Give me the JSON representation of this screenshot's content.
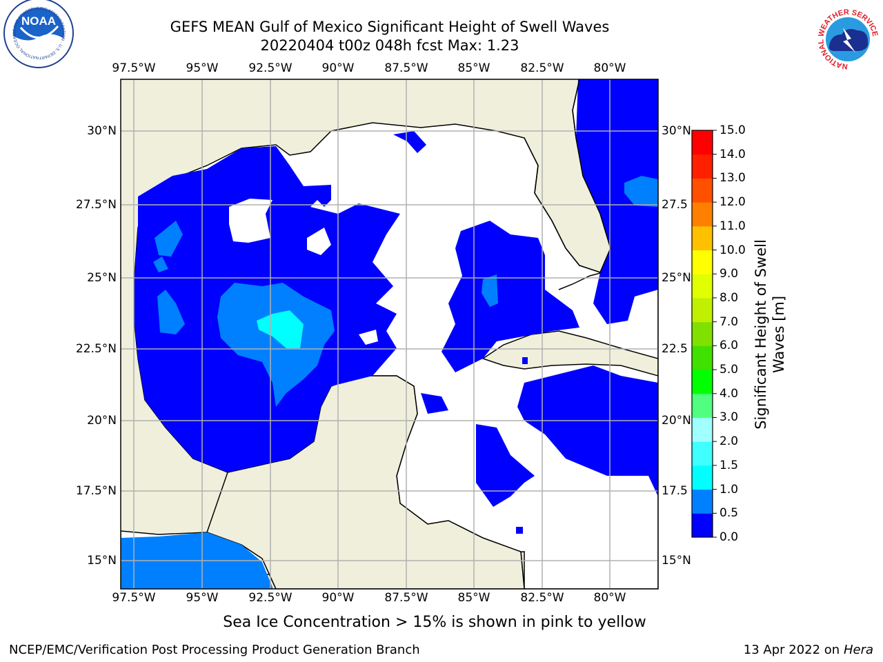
{
  "header": {
    "title_line1": "GEFS MEAN Gulf of Mexico Significant Height of Swell Waves",
    "title_line2": "20220404 t00z 048h fcst   Max: 1.23"
  },
  "logos": {
    "left": {
      "name": "noaa-logo",
      "text": "NOAA",
      "ring_text": "NATIONAL OCEANIC AND ATMOSPHERIC ADMINISTRATION · U.S. DEPARTMENT OF COMMERCE"
    },
    "right": {
      "name": "nws-logo",
      "ring_text": "NATIONAL WEATHER SERVICE"
    }
  },
  "map": {
    "lon_ticks": [
      "97.5°W",
      "95°W",
      "92.5°W",
      "90°W",
      "87.5°W",
      "85°W",
      "82.5°W",
      "80°W"
    ],
    "lat_ticks_left": [
      "30°N",
      "27.5°N",
      "25°N",
      "22.5°N",
      "20°N",
      "17.5°N",
      "15°N"
    ],
    "lat_ticks_right": [
      "30°N",
      "27.5",
      "25°N",
      "22.5",
      "20°N",
      "17.5",
      "15°N"
    ],
    "colors": {
      "land": "#efefdc",
      "ocean_low": "#0000ff",
      "ocean_mid": "#0080ff",
      "ocean_high": "#00ffff"
    }
  },
  "colorbar": {
    "label_line1": "Significant Height of Swell",
    "label_line2": "Waves [m]",
    "ticks": [
      "0.0",
      "0.5",
      "1.0",
      "1.5",
      "2.0",
      "3.0",
      "4.0",
      "5.0",
      "6.0",
      "7.0",
      "8.0",
      "9.0",
      "10.0",
      "11.0",
      "12.0",
      "13.0",
      "14.0",
      "15.0"
    ],
    "colors": [
      "#0000ff",
      "#0080ff",
      "#00ffff",
      "#40ffff",
      "#a0ffff",
      "#50ff80",
      "#00ff00",
      "#40e000",
      "#80e000",
      "#c0f000",
      "#e0ff00",
      "#ffff00",
      "#ffc000",
      "#ff8000",
      "#ff5000",
      "#ff2000",
      "#ff0000"
    ]
  },
  "note": "Sea Ice Concentration > 15% is shown in pink to yellow",
  "footer": {
    "left": "NCEP/EMC/Verification Post Processing Product Generation Branch",
    "right_date": "13 Apr 2022 on",
    "right_host": "Hera"
  }
}
